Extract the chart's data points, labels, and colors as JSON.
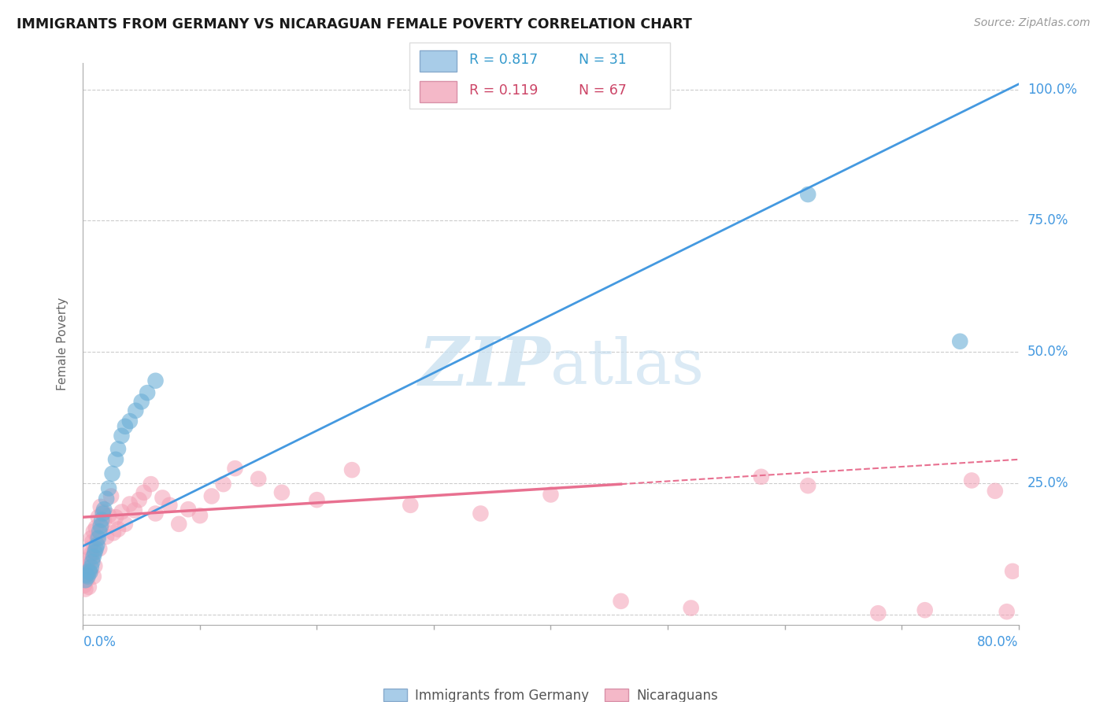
{
  "title": "IMMIGRANTS FROM GERMANY VS NICARAGUAN FEMALE POVERTY CORRELATION CHART",
  "source": "Source: ZipAtlas.com",
  "ylabel": "Female Poverty",
  "xlim": [
    0,
    0.8
  ],
  "ylim": [
    -0.02,
    1.05
  ],
  "yticks": [
    0.0,
    0.25,
    0.5,
    0.75,
    1.0
  ],
  "ytick_labels": [
    "",
    "25.0%",
    "50.0%",
    "75.0%",
    "100.0%"
  ],
  "xticks": [
    0.0,
    0.1,
    0.2,
    0.3,
    0.4,
    0.5,
    0.6,
    0.7,
    0.8
  ],
  "series1_color": "#6aaed6",
  "series2_color": "#f4a0b5",
  "line1_color": "#4499e0",
  "line2_color": "#e87090",
  "legend_color1": "#a8cce8",
  "legend_color2": "#f4b8c8",
  "legend_edge1": "#88aacc",
  "legend_edge2": "#d890a8",
  "legend_text_color1": "#3399cc",
  "legend_text_color2": "#cc4466",
  "watermark_color": "#cce8f5",
  "series1_label": "Immigrants from Germany",
  "series2_label": "Nicaraguans",
  "R1": "0.817",
  "N1": "31",
  "R2": "0.119",
  "N2": "67",
  "background_color": "#ffffff",
  "grid_color": "#cccccc",
  "title_color": "#1a1a1a",
  "right_label_color": "#4499e0",
  "bottom_label_color": "#4499e0",
  "blue_line": [
    [
      0.0,
      0.13
    ],
    [
      0.8,
      1.01
    ]
  ],
  "pink_solid_line": [
    [
      0.0,
      0.185
    ],
    [
      0.46,
      0.248
    ]
  ],
  "pink_dash_line": [
    [
      0.46,
      0.248
    ],
    [
      0.8,
      0.295
    ]
  ],
  "blue_x": [
    0.002,
    0.003,
    0.004,
    0.005,
    0.006,
    0.007,
    0.008,
    0.009,
    0.01,
    0.011,
    0.012,
    0.013,
    0.014,
    0.015,
    0.016,
    0.017,
    0.018,
    0.02,
    0.022,
    0.025,
    0.028,
    0.03,
    0.033,
    0.036,
    0.04,
    0.045,
    0.05,
    0.055,
    0.062,
    0.62,
    0.75
  ],
  "blue_y": [
    0.065,
    0.075,
    0.072,
    0.082,
    0.08,
    0.09,
    0.1,
    0.11,
    0.118,
    0.125,
    0.132,
    0.145,
    0.158,
    0.168,
    0.18,
    0.192,
    0.2,
    0.22,
    0.24,
    0.268,
    0.295,
    0.315,
    0.34,
    0.358,
    0.368,
    0.388,
    0.405,
    0.422,
    0.445,
    0.8,
    0.52
  ],
  "pink_x": [
    0.001,
    0.001,
    0.002,
    0.002,
    0.003,
    0.003,
    0.004,
    0.004,
    0.005,
    0.005,
    0.006,
    0.006,
    0.007,
    0.007,
    0.008,
    0.008,
    0.009,
    0.009,
    0.01,
    0.01,
    0.011,
    0.012,
    0.013,
    0.014,
    0.015,
    0.016,
    0.017,
    0.018,
    0.02,
    0.022,
    0.024,
    0.026,
    0.028,
    0.03,
    0.033,
    0.036,
    0.04,
    0.044,
    0.048,
    0.052,
    0.058,
    0.062,
    0.068,
    0.074,
    0.082,
    0.09,
    0.1,
    0.11,
    0.12,
    0.13,
    0.15,
    0.17,
    0.2,
    0.23,
    0.28,
    0.34,
    0.4,
    0.46,
    0.52,
    0.58,
    0.62,
    0.68,
    0.72,
    0.76,
    0.78,
    0.79,
    0.795
  ],
  "pink_y": [
    0.055,
    0.075,
    0.048,
    0.09,
    0.065,
    0.085,
    0.072,
    0.095,
    0.105,
    0.052,
    0.125,
    0.082,
    0.115,
    0.145,
    0.138,
    0.105,
    0.158,
    0.072,
    0.122,
    0.092,
    0.165,
    0.145,
    0.185,
    0.125,
    0.205,
    0.168,
    0.195,
    0.178,
    0.148,
    0.188,
    0.225,
    0.155,
    0.185,
    0.162,
    0.195,
    0.172,
    0.21,
    0.198,
    0.218,
    0.232,
    0.248,
    0.192,
    0.222,
    0.208,
    0.172,
    0.2,
    0.188,
    0.225,
    0.248,
    0.278,
    0.258,
    0.232,
    0.218,
    0.275,
    0.208,
    0.192,
    0.228,
    0.025,
    0.012,
    0.262,
    0.245,
    0.002,
    0.008,
    0.255,
    0.235,
    0.005,
    0.082
  ]
}
